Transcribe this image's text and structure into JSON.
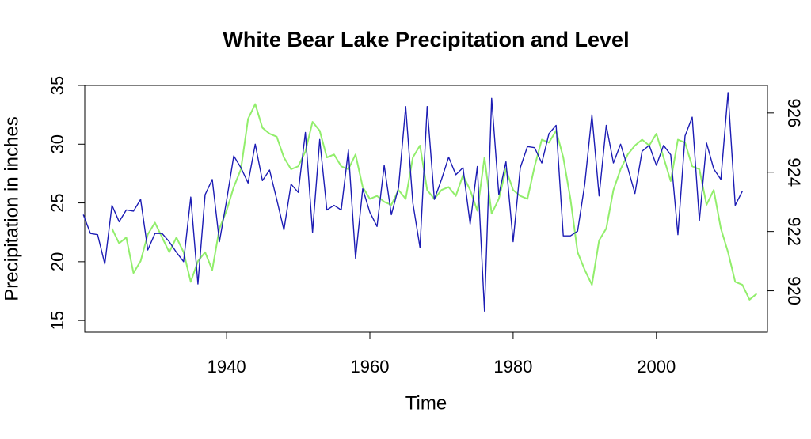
{
  "chart_data": {
    "type": "line",
    "title": "White Bear Lake Precipitation and Level",
    "xlabel": "Time",
    "ylabel": "Precipitation in inches",
    "xlim": [
      1920.2,
      2015.5
    ],
    "xticks": [
      1940,
      1960,
      1980,
      2000
    ],
    "ylim": [
      14,
      35
    ],
    "yticks": [
      15,
      20,
      25,
      30,
      35
    ],
    "y2lim": [
      918.6,
      926.93
    ],
    "y2ticks": [
      920,
      922,
      924,
      926
    ],
    "series": [
      {
        "color": "#1c1cb4",
        "x": [
          1920,
          1921,
          1922,
          1923,
          1924,
          1925,
          1926,
          1927,
          1928,
          1929,
          1930,
          1931,
          1932,
          1933,
          1934,
          1935,
          1936,
          1937,
          1938,
          1939,
          1940,
          1941,
          1942,
          1943,
          1944,
          1945,
          1946,
          1947,
          1948,
          1949,
          1950,
          1951,
          1952,
          1953,
          1954,
          1955,
          1956,
          1957,
          1958,
          1959,
          1960,
          1961,
          1962,
          1963,
          1964,
          1965,
          1966,
          1967,
          1968,
          1969,
          1970,
          1971,
          1972,
          1973,
          1974,
          1975,
          1976,
          1977,
          1978,
          1979,
          1980,
          1981,
          1982,
          1983,
          1984,
          1985,
          1986,
          1987,
          1988,
          1989,
          1990,
          1991,
          1992,
          1993,
          1994,
          1995,
          1996,
          1997,
          1998,
          1999,
          2000,
          2001,
          2002,
          2003,
          2004,
          2005,
          2006,
          2007,
          2008,
          2009,
          2010,
          2011,
          2012
        ],
        "values": [
          24.0,
          22.4,
          22.3,
          19.8,
          24.8,
          23.4,
          24.4,
          24.3,
          25.3,
          21.0,
          22.4,
          22.4,
          21.7,
          20.8,
          20.0,
          25.5,
          18.1,
          25.7,
          27.0,
          21.7,
          25.2,
          29.0,
          28.0,
          26.7,
          30.0,
          26.9,
          27.8,
          25.3,
          22.7,
          26.6,
          25.9,
          31.0,
          22.5,
          30.4,
          24.4,
          24.8,
          24.4,
          29.5,
          20.3,
          26.2,
          24.2,
          23.0,
          28.2,
          24.0,
          26.3,
          33.2,
          25.0,
          21.2,
          33.2,
          25.3,
          27.0,
          28.9,
          27.4,
          28.0,
          23.2,
          28.1,
          15.8,
          33.9,
          25.7,
          28.5,
          21.7,
          28.0,
          29.8,
          29.7,
          28.4,
          30.9,
          31.6,
          22.2,
          22.2,
          22.6,
          26.6,
          32.5,
          25.6,
          31.6,
          28.4,
          30.0,
          28.0,
          25.8,
          29.4,
          29.9,
          28.2,
          29.9,
          29.1,
          22.3,
          30.7,
          32.3,
          23.5,
          30.1,
          27.9,
          27.0,
          34.4,
          24.8,
          26.0
        ]
      },
      {
        "color": "#92ee6c",
        "axis": "y2",
        "x": [
          1924,
          1925,
          1926,
          1927,
          1928,
          1929,
          1930,
          1931,
          1932,
          1933,
          1934,
          1935,
          1936,
          1937,
          1938,
          1939,
          1940,
          1941,
          1942,
          1943,
          1944,
          1945,
          1946,
          1947,
          1948,
          1949,
          1950,
          1951,
          1952,
          1953,
          1954,
          1955,
          1956,
          1957,
          1958,
          1959,
          1960,
          1961,
          1962,
          1963,
          1964,
          1965,
          1966,
          1967,
          1968,
          1969,
          1970,
          1971,
          1972,
          1973,
          1974,
          1975,
          1976,
          1977,
          1978,
          1979,
          1980,
          1981,
          1982,
          1983,
          1984,
          1985,
          1986,
          1987,
          1988,
          1989,
          1990,
          1991,
          1992,
          1993,
          1994,
          1995,
          1996,
          1997,
          1998,
          1999,
          2000,
          2001,
          2002,
          2003,
          2004,
          2005,
          2006,
          2007,
          2008,
          2009,
          2010,
          2011,
          2012,
          2013,
          2014
        ],
        "values": [
          922.1,
          921.6,
          921.8,
          920.6,
          921.0,
          921.9,
          922.3,
          921.8,
          921.3,
          921.8,
          921.3,
          920.3,
          921.0,
          921.3,
          920.7,
          922.1,
          922.7,
          923.5,
          924.1,
          925.8,
          926.3,
          925.5,
          925.3,
          925.2,
          924.5,
          924.1,
          924.2,
          924.7,
          925.7,
          925.4,
          924.5,
          924.6,
          924.2,
          924.1,
          924.6,
          923.5,
          923.1,
          923.2,
          923.0,
          922.9,
          923.4,
          923.1,
          924.5,
          924.9,
          923.4,
          923.1,
          923.4,
          923.5,
          923.2,
          923.9,
          923.4,
          922.7,
          924.5,
          922.6,
          923.1,
          924.1,
          923.4,
          923.2,
          923.1,
          924.2,
          925.1,
          925.0,
          925.4,
          924.5,
          923.1,
          921.3,
          920.7,
          920.2,
          921.7,
          922.1,
          923.4,
          924.1,
          924.6,
          924.9,
          925.1,
          924.9,
          925.3,
          924.5,
          923.7,
          925.1,
          925.0,
          924.2,
          924.1,
          922.9,
          923.4,
          922.1,
          921.3,
          920.3,
          920.2,
          919.7,
          919.9
        ]
      }
    ]
  }
}
